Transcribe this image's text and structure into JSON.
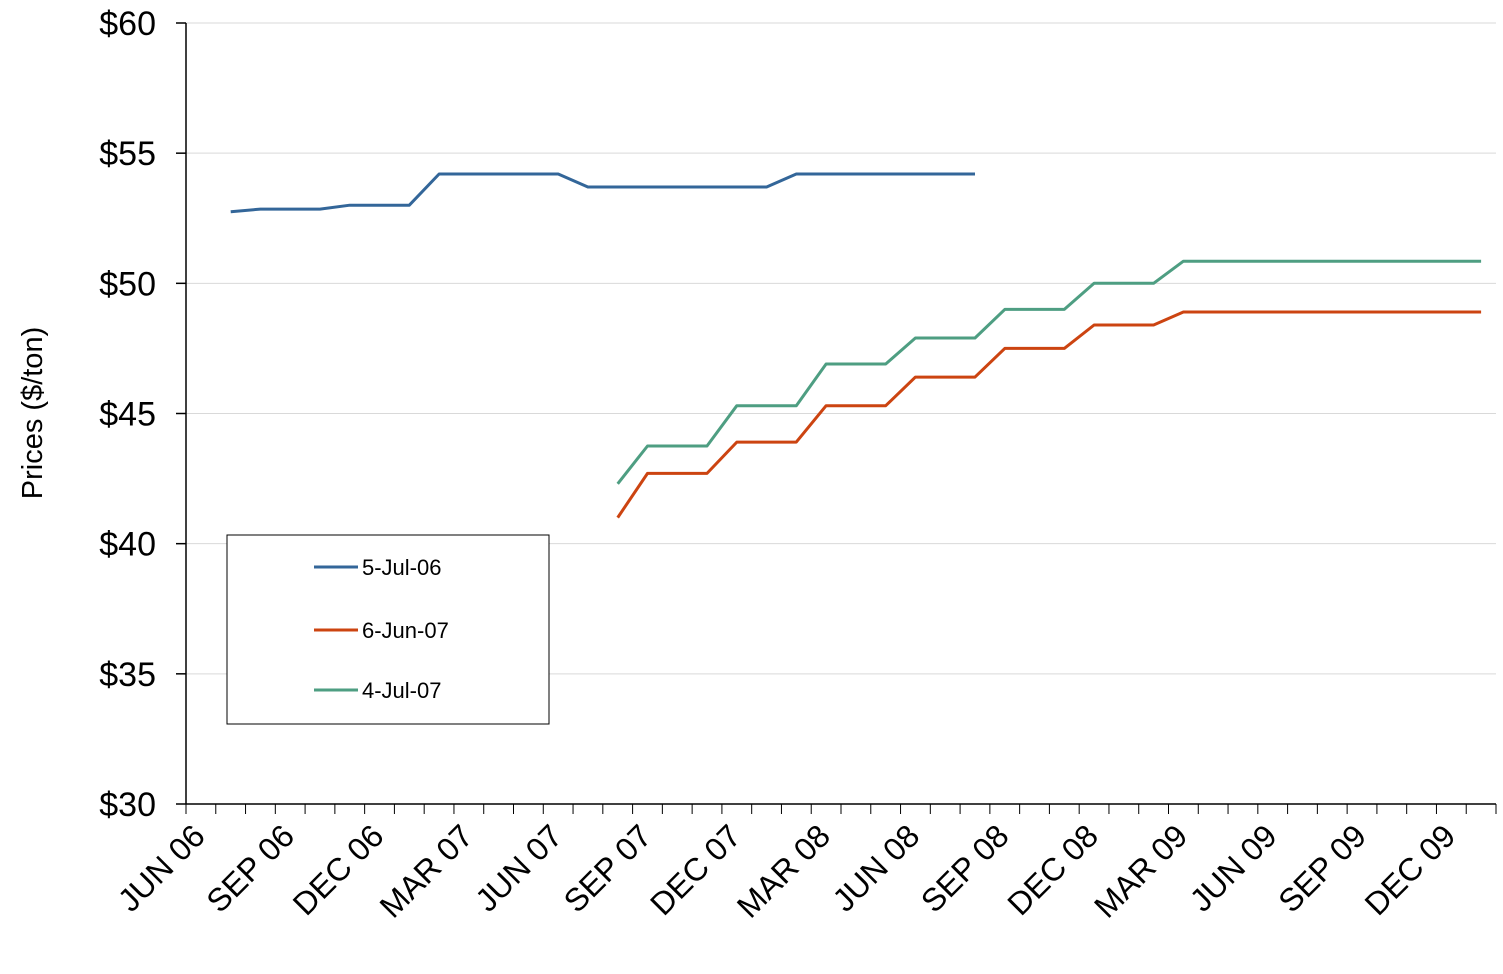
{
  "chart_data": {
    "type": "line",
    "title": "",
    "xlabel": "",
    "ylabel": "Prices ($/ton)",
    "ylim": [
      30,
      60
    ],
    "y_ticks": [
      30,
      35,
      40,
      45,
      50,
      55,
      60
    ],
    "y_tick_labels": [
      "$30",
      "$35",
      "$40",
      "$45",
      "$50",
      "$55",
      "$60"
    ],
    "x_range": [
      "2006-06",
      "2010-01"
    ],
    "x_tick_labels": [
      "JUN 06",
      "SEP 06",
      "DEC 06",
      "MAR 07",
      "JUN 07",
      "SEP 07",
      "DEC 07",
      "MAR 08",
      "JUN 08",
      "SEP 08",
      "DEC 08",
      "MAR 09",
      "JUN 09",
      "SEP 09",
      "DEC 09"
    ],
    "grid": true,
    "legend_position": "lower-left",
    "series": [
      {
        "name": "5-Jul-06",
        "color": "#336699",
        "x": [
          "2006-07",
          "2006-08",
          "2006-09",
          "2006-10",
          "2006-11",
          "2006-12",
          "2007-01",
          "2007-02",
          "2007-03",
          "2007-04",
          "2007-05",
          "2007-06",
          "2007-07",
          "2007-08",
          "2007-09",
          "2007-10",
          "2007-11",
          "2007-12",
          "2008-01",
          "2008-02",
          "2008-03",
          "2008-04",
          "2008-05",
          "2008-06",
          "2008-07",
          "2008-08"
        ],
        "values": [
          52.75,
          52.85,
          52.85,
          52.85,
          53.0,
          53.0,
          53.0,
          54.2,
          54.2,
          54.2,
          54.2,
          54.2,
          53.7,
          53.7,
          53.7,
          53.7,
          53.7,
          53.7,
          53.7,
          54.2,
          54.2,
          54.2,
          54.2,
          54.2,
          54.2,
          54.2
        ]
      },
      {
        "name": "6-Jun-07",
        "color": "#CC4411",
        "x": [
          "2007-08",
          "2007-09",
          "2007-10",
          "2007-11",
          "2007-12",
          "2008-01",
          "2008-02",
          "2008-03",
          "2008-04",
          "2008-05",
          "2008-06",
          "2008-07",
          "2008-08",
          "2008-09",
          "2008-10",
          "2008-11",
          "2008-12",
          "2009-01",
          "2009-02",
          "2009-03",
          "2009-04",
          "2009-05",
          "2009-06",
          "2009-07",
          "2009-08",
          "2009-09",
          "2009-10",
          "2009-11",
          "2009-12",
          "2010-01"
        ],
        "values": [
          41.0,
          42.7,
          42.7,
          42.7,
          43.9,
          43.9,
          43.9,
          45.3,
          45.3,
          45.3,
          46.4,
          46.4,
          46.4,
          47.5,
          47.5,
          47.5,
          48.4,
          48.4,
          48.4,
          48.9,
          48.9,
          48.9,
          48.9,
          48.9,
          48.9,
          48.9,
          48.9,
          48.9,
          48.9,
          48.9
        ]
      },
      {
        "name": "4-Jul-07",
        "color": "#4E9E82",
        "x": [
          "2007-08",
          "2007-09",
          "2007-10",
          "2007-11",
          "2007-12",
          "2008-01",
          "2008-02",
          "2008-03",
          "2008-04",
          "2008-05",
          "2008-06",
          "2008-07",
          "2008-08",
          "2008-09",
          "2008-10",
          "2008-11",
          "2008-12",
          "2009-01",
          "2009-02",
          "2009-03",
          "2009-04",
          "2009-05",
          "2009-06",
          "2009-07",
          "2009-08",
          "2009-09",
          "2009-10",
          "2009-11",
          "2009-12",
          "2010-01"
        ],
        "values": [
          42.3,
          43.75,
          43.75,
          43.75,
          45.3,
          45.3,
          45.3,
          46.9,
          46.9,
          46.9,
          47.9,
          47.9,
          47.9,
          49.0,
          49.0,
          49.0,
          50.0,
          50.0,
          50.0,
          50.85,
          50.85,
          50.85,
          50.85,
          50.85,
          50.85,
          50.85,
          50.85,
          50.85,
          50.85,
          50.85
        ]
      }
    ]
  }
}
